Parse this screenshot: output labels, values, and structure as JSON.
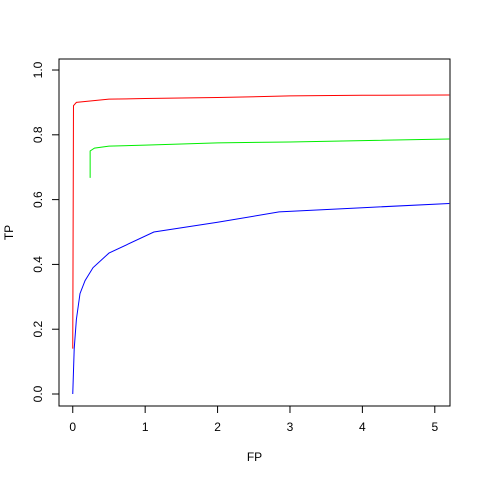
{
  "chart_data": {
    "type": "line",
    "xlabel": "FP",
    "ylabel": "TP",
    "xlim": [
      -0.19,
      5.21
    ],
    "ylim": [
      -0.037,
      1.034
    ],
    "xticks": [
      0,
      1,
      2,
      3,
      4,
      5
    ],
    "yticks": [
      {
        "value": 0,
        "label": "0.0"
      },
      0.2,
      0.4,
      0.6,
      0.8,
      {
        "value": 1,
        "label": "1.0"
      }
    ],
    "series": [
      {
        "color": "#ff0000",
        "x": [
          0,
          0.01,
          0.05,
          0.5,
          1,
          2,
          3,
          4,
          5.2
        ],
        "values": [
          0.14,
          0.89,
          0.9,
          0.91,
          0.912,
          0.915,
          0.92,
          0.922,
          0.923
        ]
      },
      {
        "color": "#00ee00",
        "x": [
          0.24,
          0.24,
          0.3,
          0.5,
          1,
          2,
          3,
          4,
          5.2
        ],
        "values": [
          0.667,
          0.75,
          0.759,
          0.765,
          0.768,
          0.775,
          0.778,
          0.782,
          0.787
        ]
      },
      {
        "color": "#0000ff",
        "x": [
          0,
          0.02,
          0.05,
          0.1,
          0.17,
          0.28,
          0.5,
          1.12,
          2,
          2.85,
          4,
          5.2
        ],
        "values": [
          0,
          0.14,
          0.23,
          0.31,
          0.35,
          0.39,
          0.435,
          0.5,
          0.53,
          0.562,
          0.575,
          0.588
        ]
      }
    ]
  }
}
